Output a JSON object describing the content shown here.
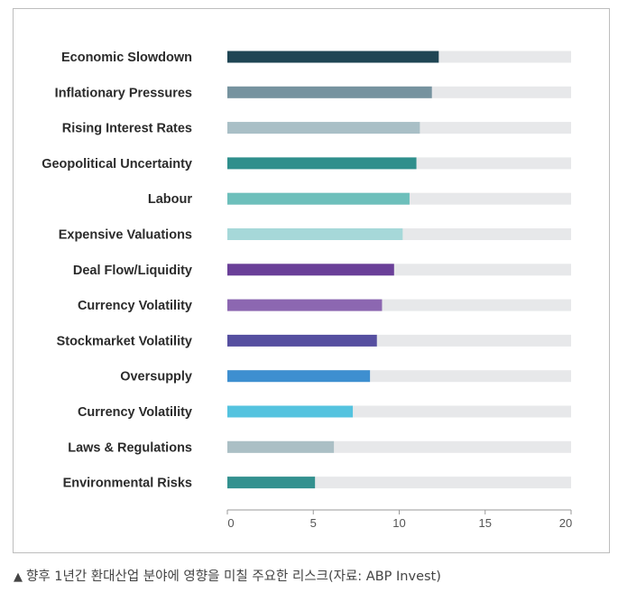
{
  "caption": {
    "marker": "▲",
    "text": "향후 1년간 환대산업 분야에 영향을 미칠 주요한 리스크(자료: ABP Invest)"
  },
  "chart_data": {
    "type": "bar",
    "orientation": "horizontal",
    "categories": [
      "Economic Slowdown",
      "Inflationary Pressures",
      "Rising Interest Rates",
      "Geopolitical Uncertainty",
      "Labour",
      "Expensive Valuations",
      "Deal Flow/Liquidity",
      "Currency Volatility",
      "Stockmarket Volatility",
      "Oversupply",
      "Currency Volatility",
      "Laws & Regulations",
      "Environmental Risks"
    ],
    "values": [
      12.3,
      11.9,
      11.2,
      11.0,
      10.6,
      10.2,
      9.7,
      9.0,
      8.7,
      8.3,
      7.3,
      6.2,
      5.1
    ],
    "colors": [
      "#1f4554",
      "#76939f",
      "#a9bfc6",
      "#2f8f8c",
      "#6dbfbb",
      "#a6d8d9",
      "#6a3f98",
      "#8c67b1",
      "#564fa0",
      "#3e8fd0",
      "#54c3df",
      "#abbfc5",
      "#33918f"
    ],
    "track_color": "#e7e8ea",
    "xlim": [
      0,
      20
    ],
    "xticks": [
      0,
      5,
      10,
      15,
      20
    ],
    "title": "",
    "xlabel": "",
    "ylabel": "",
    "grid": false,
    "legend": "none"
  }
}
